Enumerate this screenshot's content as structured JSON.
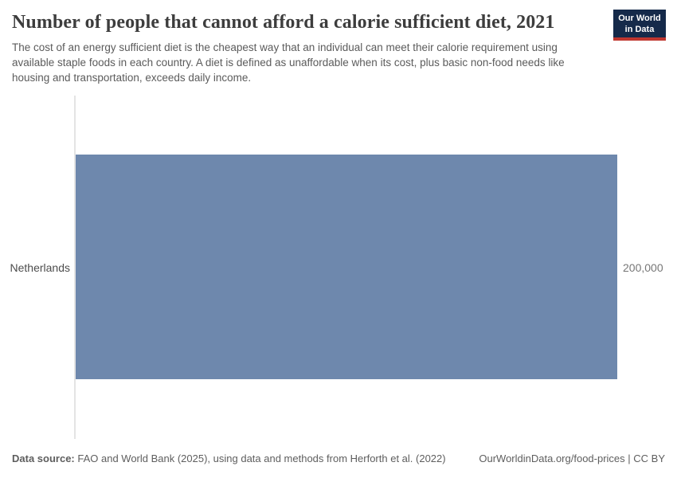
{
  "header": {
    "title": "Number of people that cannot afford a calorie sufficient diet, 2021",
    "subtitle": "The cost of an energy sufficient diet is the cheapest way that an individual can meet their calorie requirement using available staple foods in each country. A diet is defined as unaffordable when its cost, plus basic non-food needs like housing and transportation, exceeds daily income.",
    "logo": {
      "line1": "Our World",
      "line2": "in Data",
      "bg_color": "#152a4a",
      "accent_color": "#c0362f"
    }
  },
  "chart_data": {
    "type": "bar",
    "orientation": "horizontal",
    "title": "Number of people that cannot afford a calorie sufficient diet, 2021",
    "categories": [
      "Netherlands"
    ],
    "values": [
      200000
    ],
    "value_labels": [
      "200,000"
    ],
    "xlim": [
      0,
      200000
    ],
    "bar_color": "#6e88ad",
    "axis_line_color": "#e4e4e4",
    "grid": false,
    "legend": false
  },
  "footer": {
    "datasource_label": "Data source:",
    "datasource_text": " FAO and World Bank (2025), using data and methods from Herforth et al. (2022)",
    "link_text": "OurWorldinData.org/food-prices | CC BY"
  }
}
